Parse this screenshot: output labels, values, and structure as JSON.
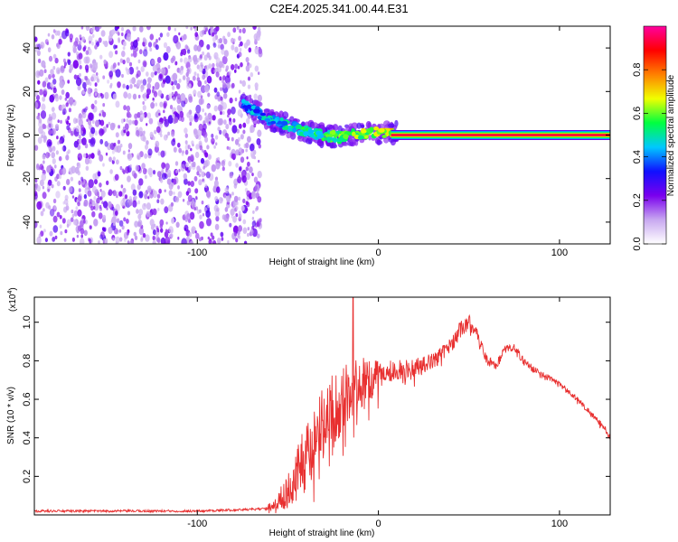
{
  "title": "C2E4.2025.341.00.44.E31",
  "chart_data": [
    {
      "type": "heatmap",
      "xlabel": "Height of straight line (km)",
      "ylabel": "Frequency (Hz)",
      "xlim": [
        -190,
        128
      ],
      "ylim": [
        -50,
        50
      ],
      "x_ticks": [
        -100,
        0,
        100
      ],
      "x_tick_labels": [
        "-100",
        "0",
        "100"
      ],
      "y_ticks": [
        -40,
        -20,
        0,
        20,
        40
      ],
      "y_tick_labels": [
        "-40",
        "-20",
        "0",
        "20",
        "40"
      ],
      "colorbar": {
        "label": "Normalized spectral amplitude",
        "range": [
          0,
          1
        ],
        "ticks": [
          0.0,
          0.2,
          0.4,
          0.6,
          0.8
        ],
        "tick_labels": [
          "0.0",
          "0.2",
          "0.4",
          "0.6",
          "0.8"
        ],
        "colormap": [
          "#ffffff",
          "#c8a8f0",
          "#7a00ee",
          "#1010ff",
          "#00c8ff",
          "#00ff40",
          "#f0ff00",
          "#ff8000",
          "#ff0000",
          "#ff00a0"
        ]
      },
      "noise_region_x": [
        -190,
        -65
      ],
      "transition_ridge": {
        "x": [
          -75,
          -68,
          -60,
          -52,
          -45,
          -38,
          -30,
          -22,
          -15,
          -8,
          0,
          5,
          10
        ],
        "y": [
          14,
          11,
          7,
          5,
          3,
          1,
          0,
          -1,
          0,
          1,
          1,
          1,
          1
        ]
      },
      "main_line": {
        "x_start": 10,
        "x_end": 128,
        "frequency": 0
      }
    },
    {
      "type": "line",
      "xlabel": "Height of straight line (km)",
      "ylabel": "SNR (10 * v/v)",
      "y_multiplier": "(x10^4)",
      "y_multiplier_base": "(x10",
      "y_multiplier_exp": "4",
      "y_multiplier_close": ")",
      "xlim": [
        -190,
        128
      ],
      "ylim": [
        0,
        1.13
      ],
      "x_ticks": [
        -100,
        0,
        100
      ],
      "x_tick_labels": [
        "-100",
        "0",
        "100"
      ],
      "y_ticks": [
        0.2,
        0.4,
        0.6,
        0.8,
        1.0
      ],
      "y_tick_labels": [
        "0.2",
        "0.4",
        "0.6",
        "0.8",
        "1.0"
      ],
      "color": "#e83030",
      "series": [
        {
          "name": "SNR",
          "envelope_x": [
            -190,
            -100,
            -65,
            -58,
            -50,
            -45,
            -40,
            -35,
            -30,
            -25,
            -20,
            -15,
            -10,
            -5,
            0,
            5,
            10,
            15,
            20,
            25,
            30,
            35,
            40,
            45,
            50,
            55,
            60,
            65,
            70,
            75,
            80,
            85,
            90,
            95,
            100,
            105,
            110,
            115,
            120,
            125,
            128
          ],
          "envelope_y": [
            0.02,
            0.02,
            0.03,
            0.05,
            0.12,
            0.2,
            0.3,
            0.42,
            0.5,
            0.55,
            0.6,
            0.65,
            0.68,
            0.7,
            0.72,
            0.75,
            0.75,
            0.76,
            0.77,
            0.78,
            0.8,
            0.84,
            0.88,
            0.96,
            1.0,
            0.93,
            0.8,
            0.78,
            0.86,
            0.87,
            0.8,
            0.76,
            0.73,
            0.71,
            0.68,
            0.64,
            0.6,
            0.55,
            0.5,
            0.45,
            0.4
          ],
          "spread": [
            0.0,
            0.0,
            0.0,
            0.06,
            0.18,
            0.3,
            0.38,
            0.42,
            0.4,
            0.38,
            0.36,
            0.32,
            0.28,
            0.22,
            0.16,
            0.12,
            0.1,
            0.1,
            0.1,
            0.09,
            0.08,
            0.08,
            0.08,
            0.09,
            0.08,
            0.06,
            0.05,
            0.05,
            0.04,
            0.04,
            0.04,
            0.04,
            0.03,
            0.03,
            0.03,
            0.03,
            0.03,
            0.03,
            0.03,
            0.03,
            0.03
          ],
          "peak": {
            "x": -14,
            "y": 1.13
          }
        }
      ]
    }
  ]
}
